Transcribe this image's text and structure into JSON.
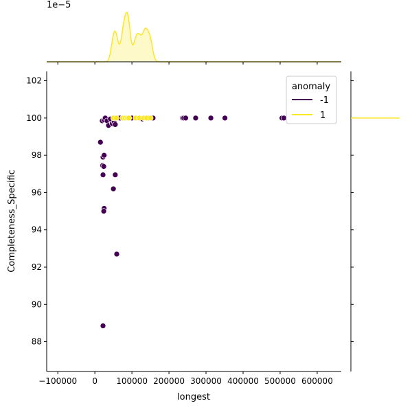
{
  "chart_data": {
    "type": "scatter",
    "title": "",
    "xlabel": "longest",
    "ylabel": "Completeness_Specific",
    "xlim": [
      -130000,
      665000
    ],
    "ylim": [
      86.4,
      102.5
    ],
    "x_ticks": [
      -100000,
      0,
      100000,
      200000,
      300000,
      400000,
      500000,
      600000
    ],
    "y_ticks": [
      88,
      90,
      92,
      94,
      96,
      98,
      100,
      102
    ],
    "x_tick_labels": [
      "−100000",
      "0",
      "100000",
      "200000",
      "300000",
      "400000",
      "500000",
      "600000"
    ],
    "y_tick_labels": [
      "88",
      "90",
      "92",
      "94",
      "96",
      "98",
      "100",
      "102"
    ],
    "legend": {
      "title": "anomaly",
      "placement": "top-right",
      "entries": [
        {
          "label": "-1",
          "color": "#440154"
        },
        {
          "label": "1",
          "color": "#fde725"
        }
      ]
    },
    "top_marginal_offset_label": "1e−5",
    "series": [
      {
        "name": "-1",
        "color": "#440154",
        "points": [
          {
            "x": 15000,
            "y": 98.7
          },
          {
            "x": 22000,
            "y": 97.9
          },
          {
            "x": 25000,
            "y": 98.0
          },
          {
            "x": 21000,
            "y": 97.45
          },
          {
            "x": 24000,
            "y": 97.4
          },
          {
            "x": 22000,
            "y": 96.95
          },
          {
            "x": 55000,
            "y": 96.95
          },
          {
            "x": 50000,
            "y": 96.2
          },
          {
            "x": 25000,
            "y": 95.15
          },
          {
            "x": 24000,
            "y": 95.0
          },
          {
            "x": 59000,
            "y": 92.7
          },
          {
            "x": 22000,
            "y": 88.85
          },
          {
            "x": 20000,
            "y": 99.85
          },
          {
            "x": 25000,
            "y": 99.9
          },
          {
            "x": 28000,
            "y": 100.0
          },
          {
            "x": 33000,
            "y": 99.85
          },
          {
            "x": 37000,
            "y": 99.6
          },
          {
            "x": 42000,
            "y": 99.95
          },
          {
            "x": 47000,
            "y": 99.7
          },
          {
            "x": 52000,
            "y": 99.8
          },
          {
            "x": 55000,
            "y": 99.65
          },
          {
            "x": 58000,
            "y": 100.0
          },
          {
            "x": 63000,
            "y": 100.0
          },
          {
            "x": 68000,
            "y": 100.0
          },
          {
            "x": 100000,
            "y": 100.0
          },
          {
            "x": 112000,
            "y": 100.0
          },
          {
            "x": 122000,
            "y": 100.0
          },
          {
            "x": 128000,
            "y": 99.95
          },
          {
            "x": 136000,
            "y": 100.0
          },
          {
            "x": 145000,
            "y": 100.0
          },
          {
            "x": 157000,
            "y": 100.0
          },
          {
            "x": 237000,
            "y": 100.0
          },
          {
            "x": 240000,
            "y": 100.0
          },
          {
            "x": 245000,
            "y": 100.0
          },
          {
            "x": 272000,
            "y": 100.0
          },
          {
            "x": 313000,
            "y": 100.0
          },
          {
            "x": 351000,
            "y": 100.0
          },
          {
            "x": 505000,
            "y": 100.0
          },
          {
            "x": 510000,
            "y": 100.0
          }
        ]
      },
      {
        "name": "1",
        "color": "#fde725",
        "points": [
          {
            "x": 50000,
            "y": 100.0
          },
          {
            "x": 58000,
            "y": 100.0
          },
          {
            "x": 75000,
            "y": 100.0
          },
          {
            "x": 82000,
            "y": 100.0
          },
          {
            "x": 88000,
            "y": 100.0
          },
          {
            "x": 92000,
            "y": 100.0
          },
          {
            "x": 110000,
            "y": 100.0
          },
          {
            "x": 120000,
            "y": 100.0
          },
          {
            "x": 132000,
            "y": 100.0
          },
          {
            "x": 140000,
            "y": 100.0
          },
          {
            "x": 150000,
            "y": 100.0
          }
        ]
      }
    ]
  }
}
